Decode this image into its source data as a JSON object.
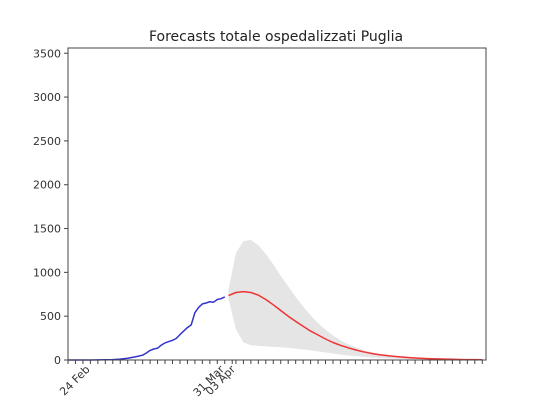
{
  "chart_data": {
    "type": "line",
    "title": "Forecasts totale ospedalizzati Puglia",
    "xlabel": "",
    "ylabel": "",
    "ylim": [
      0,
      3560
    ],
    "xlim": [
      "2020-02-18",
      "2020-06-09"
    ],
    "x_tick_dates": [
      "2020-02-18",
      "2020-02-20",
      "2020-02-22",
      "2020-02-24",
      "2020-02-26",
      "2020-02-28",
      "2020-03-01",
      "2020-03-03",
      "2020-03-05",
      "2020-03-07",
      "2020-03-09",
      "2020-03-11",
      "2020-03-13",
      "2020-03-15",
      "2020-03-17",
      "2020-03-19",
      "2020-03-21",
      "2020-03-23",
      "2020-03-25",
      "2020-03-27",
      "2020-03-29",
      "2020-03-31",
      "2020-04-02",
      "2020-04-03",
      "2020-04-05",
      "2020-04-07",
      "2020-04-09",
      "2020-04-11",
      "2020-04-13",
      "2020-04-15",
      "2020-04-17",
      "2020-04-19",
      "2020-04-21",
      "2020-04-23",
      "2020-04-25",
      "2020-04-27",
      "2020-04-29",
      "2020-05-01",
      "2020-05-03",
      "2020-05-05",
      "2020-05-07",
      "2020-05-09",
      "2020-05-11",
      "2020-05-13",
      "2020-05-15",
      "2020-05-17",
      "2020-05-19",
      "2020-05-21",
      "2020-05-23",
      "2020-05-25",
      "2020-05-27",
      "2020-05-29",
      "2020-05-31",
      "2020-06-02",
      "2020-06-04",
      "2020-06-06",
      "2020-06-08"
    ],
    "x_tick_labels": [
      {
        "date": "2020-02-24",
        "label": "24 Feb"
      },
      {
        "date": "2020-03-31",
        "label": "31 Mar"
      },
      {
        "date": "2020-04-03",
        "label": "03 Apr"
      }
    ],
    "y_ticks": [
      0,
      500,
      1000,
      1500,
      2000,
      2500,
      3000,
      3500
    ],
    "grid": false,
    "series": [
      {
        "color": "#3333cc",
        "x": [
          "2020-02-18",
          "2020-02-20",
          "2020-02-22",
          "2020-02-24",
          "2020-02-26",
          "2020-02-28",
          "2020-03-01",
          "2020-03-03",
          "2020-03-05",
          "2020-03-07",
          "2020-03-09",
          "2020-03-10",
          "2020-03-11",
          "2020-03-12",
          "2020-03-13",
          "2020-03-14",
          "2020-03-15",
          "2020-03-16",
          "2020-03-17",
          "2020-03-18",
          "2020-03-19",
          "2020-03-20",
          "2020-03-21",
          "2020-03-22",
          "2020-03-23",
          "2020-03-24",
          "2020-03-25",
          "2020-03-26",
          "2020-03-27",
          "2020-03-28",
          "2020-03-29",
          "2020-03-30",
          "2020-03-31"
        ],
        "values": [
          0,
          0,
          0,
          0,
          1,
          2,
          5,
          10,
          20,
          35,
          55,
          80,
          110,
          125,
          135,
          170,
          195,
          210,
          225,
          245,
          290,
          330,
          370,
          400,
          540,
          600,
          640,
          650,
          665,
          660,
          690,
          700,
          720
        ]
      },
      {
        "color": "#ee3333",
        "x": [
          "2020-04-01",
          "2020-04-03",
          "2020-04-05",
          "2020-04-07",
          "2020-04-09",
          "2020-04-11",
          "2020-04-13",
          "2020-04-15",
          "2020-04-17",
          "2020-04-19",
          "2020-04-21",
          "2020-04-23",
          "2020-04-25",
          "2020-04-27",
          "2020-04-29",
          "2020-05-01",
          "2020-05-03",
          "2020-05-05",
          "2020-05-07",
          "2020-05-09",
          "2020-05-11",
          "2020-05-13",
          "2020-05-15",
          "2020-05-17",
          "2020-05-19",
          "2020-05-21",
          "2020-05-23",
          "2020-05-25",
          "2020-05-27",
          "2020-05-29",
          "2020-05-31",
          "2020-06-02",
          "2020-06-04",
          "2020-06-06",
          "2020-06-08"
        ],
        "values": [
          735,
          770,
          780,
          770,
          740,
          690,
          630,
          565,
          500,
          440,
          385,
          330,
          285,
          240,
          200,
          168,
          140,
          115,
          95,
          78,
          63,
          52,
          42,
          35,
          28,
          23,
          18,
          15,
          12,
          10,
          8,
          6,
          5,
          4,
          3
        ]
      }
    ],
    "band": {
      "color": "#e5e5e5",
      "x": [
        "2020-04-01",
        "2020-04-03",
        "2020-04-05",
        "2020-04-07",
        "2020-04-09",
        "2020-04-11",
        "2020-04-13",
        "2020-04-15",
        "2020-04-17",
        "2020-04-19",
        "2020-04-21",
        "2020-04-23",
        "2020-04-25",
        "2020-04-27",
        "2020-04-29",
        "2020-05-01",
        "2020-05-03",
        "2020-05-05",
        "2020-05-07",
        "2020-05-09",
        "2020-05-11",
        "2020-05-13",
        "2020-05-15",
        "2020-05-17",
        "2020-05-19",
        "2020-05-21",
        "2020-05-23",
        "2020-05-25",
        "2020-05-27",
        "2020-05-29",
        "2020-05-31",
        "2020-06-02",
        "2020-06-04",
        "2020-06-06",
        "2020-06-08"
      ],
      "upper": [
        800,
        1220,
        1355,
        1370,
        1310,
        1210,
        1090,
        960,
        840,
        720,
        610,
        510,
        420,
        345,
        280,
        225,
        180,
        145,
        115,
        92,
        73,
        58,
        46,
        37,
        30,
        24,
        19,
        15,
        12,
        10,
        8,
        6,
        5,
        4,
        3
      ],
      "lower": [
        700,
        350,
        200,
        170,
        160,
        155,
        150,
        145,
        138,
        130,
        120,
        110,
        98,
        86,
        74,
        63,
        53,
        44,
        37,
        30,
        25,
        20,
        16,
        13,
        10,
        8,
        6,
        5,
        4,
        3,
        2,
        2,
        1,
        1,
        1
      ]
    }
  }
}
